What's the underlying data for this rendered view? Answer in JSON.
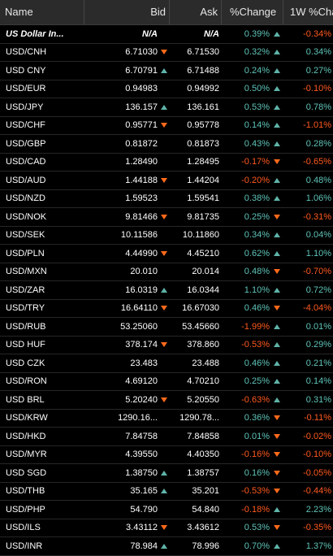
{
  "header": {
    "name": "Name",
    "bid": "Bid",
    "ask": "Ask",
    "change": "%Change",
    "week_change": "1W %Cha..."
  },
  "colors": {
    "positive": "#5fc4b8",
    "negative": "#ff5a1f",
    "up_arrow": "#5fb3a8",
    "down_arrow": "#ff6a1a"
  },
  "rows": [
    {
      "name": "US Dollar In...",
      "bid": "N/A",
      "bid_dir": "",
      "ask": "N/A",
      "chg": "0.39%",
      "chg_dir": "up",
      "wk": "-0.34%",
      "style": "na"
    },
    {
      "name": "USD/CNH",
      "bid": "6.71030",
      "bid_dir": "down",
      "ask": "6.71530",
      "chg": "0.32%",
      "chg_dir": "up",
      "wk": "0.34%",
      "style": ""
    },
    {
      "name": "USD CNY",
      "bid": "6.70791",
      "bid_dir": "up",
      "ask": "6.71488",
      "chg": "0.24%",
      "chg_dir": "up",
      "wk": "0.27%",
      "style": ""
    },
    {
      "name": "USD/EUR",
      "bid": "0.94983",
      "bid_dir": "",
      "ask": "0.94992",
      "chg": "0.50%",
      "chg_dir": "up",
      "wk": "-0.10%",
      "style": ""
    },
    {
      "name": "USD/JPY",
      "bid": "136.157",
      "bid_dir": "up",
      "ask": "136.161",
      "chg": "0.53%",
      "chg_dir": "up",
      "wk": "0.78%",
      "style": ""
    },
    {
      "name": "USD/CHF",
      "bid": "0.95771",
      "bid_dir": "down",
      "ask": "0.95778",
      "chg": "0.14%",
      "chg_dir": "up",
      "wk": "-1.01%",
      "style": ""
    },
    {
      "name": "USD/GBP",
      "bid": "0.81872",
      "bid_dir": "",
      "ask": "0.81873",
      "chg": "0.43%",
      "chg_dir": "up",
      "wk": "0.28%",
      "style": ""
    },
    {
      "name": "USD/CAD",
      "bid": "1.28490",
      "bid_dir": "",
      "ask": "1.28495",
      "chg": "-0.17%",
      "chg_dir": "down",
      "wk": "-0.65%",
      "style": ""
    },
    {
      "name": "USD/AUD",
      "bid": "1.44188",
      "bid_dir": "down",
      "ask": "1.44204",
      "chg": "-0.20%",
      "chg_dir": "up",
      "wk": "0.48%",
      "style": ""
    },
    {
      "name": "USD/NZD",
      "bid": "1.59523",
      "bid_dir": "",
      "ask": "1.59541",
      "chg": "0.38%",
      "chg_dir": "up",
      "wk": "1.06%",
      "style": ""
    },
    {
      "name": "USD/NOK",
      "bid": "9.81466",
      "bid_dir": "down",
      "ask": "9.81735",
      "chg": "0.25%",
      "chg_dir": "down",
      "wk": "-0.31%",
      "style": ""
    },
    {
      "name": "USD/SEK",
      "bid": "10.11586",
      "bid_dir": "",
      "ask": "10.11860",
      "chg": "0.34%",
      "chg_dir": "up",
      "wk": "0.04%",
      "style": ""
    },
    {
      "name": "USD/PLN",
      "bid": "4.44990",
      "bid_dir": "down",
      "ask": "4.45210",
      "chg": "0.62%",
      "chg_dir": "up",
      "wk": "1.10%",
      "style": ""
    },
    {
      "name": "USD/MXN",
      "bid": "20.010",
      "bid_dir": "",
      "ask": "20.014",
      "chg": "0.48%",
      "chg_dir": "down",
      "wk": "-0.70%",
      "style": ""
    },
    {
      "name": "USD/ZAR",
      "bid": "16.0319",
      "bid_dir": "up",
      "ask": "16.0344",
      "chg": "1.10%",
      "chg_dir": "up",
      "wk": "0.72%",
      "style": ""
    },
    {
      "name": "USD/TRY",
      "bid": "16.64110",
      "bid_dir": "down",
      "ask": "16.67030",
      "chg": "0.46%",
      "chg_dir": "down",
      "wk": "-4.04%",
      "style": ""
    },
    {
      "name": "USD/RUB",
      "bid": "53.25060",
      "bid_dir": "",
      "ask": "53.45660",
      "chg": "-1.99%",
      "chg_dir": "up",
      "wk": "0.01%",
      "style": ""
    },
    {
      "name": "USD HUF",
      "bid": "378.174",
      "bid_dir": "down",
      "ask": "378.860",
      "chg": "-0.53%",
      "chg_dir": "up",
      "wk": "0.29%",
      "style": ""
    },
    {
      "name": "USD CZK",
      "bid": "23.483",
      "bid_dir": "",
      "ask": "23.488",
      "chg": "0.46%",
      "chg_dir": "up",
      "wk": "0.21%",
      "style": ""
    },
    {
      "name": "USD/RON",
      "bid": "4.69120",
      "bid_dir": "",
      "ask": "4.70210",
      "chg": "0.25%",
      "chg_dir": "up",
      "wk": "0.14%",
      "style": ""
    },
    {
      "name": "USD BRL",
      "bid": "5.20240",
      "bid_dir": "down",
      "ask": "5.20550",
      "chg": "-0.63%",
      "chg_dir": "up",
      "wk": "0.31%",
      "style": ""
    },
    {
      "name": "USD/KRW",
      "bid": "1290.16...",
      "bid_dir": "",
      "ask": "1290.78...",
      "chg": "0.36%",
      "chg_dir": "down",
      "wk": "-0.11%",
      "style": ""
    },
    {
      "name": "USD/HKD",
      "bid": "7.84758",
      "bid_dir": "",
      "ask": "7.84858",
      "chg": "0.01%",
      "chg_dir": "down",
      "wk": "-0.02%",
      "style": ""
    },
    {
      "name": "USD/MYR",
      "bid": "4.39550",
      "bid_dir": "",
      "ask": "4.40350",
      "chg": "-0.16%",
      "chg_dir": "down",
      "wk": "-0.10%",
      "style": ""
    },
    {
      "name": "USD SGD",
      "bid": "1.38750",
      "bid_dir": "up",
      "ask": "1.38757",
      "chg": "0.16%",
      "chg_dir": "down",
      "wk": "-0.05%",
      "style": ""
    },
    {
      "name": "USD/THB",
      "bid": "35.165",
      "bid_dir": "up",
      "ask": "35.201",
      "chg": "-0.53%",
      "chg_dir": "down",
      "wk": "-0.44%",
      "style": ""
    },
    {
      "name": "USD/PHP",
      "bid": "54.790",
      "bid_dir": "",
      "ask": "54.840",
      "chg": "-0.18%",
      "chg_dir": "up",
      "wk": "2.23%",
      "style": ""
    },
    {
      "name": "USD/ILS",
      "bid": "3.43112",
      "bid_dir": "down",
      "ask": "3.43612",
      "chg": "0.53%",
      "chg_dir": "down",
      "wk": "-0.35%",
      "style": ""
    },
    {
      "name": "USD/INR",
      "bid": "78.984",
      "bid_dir": "up",
      "ask": "78.996",
      "chg": "0.70%",
      "chg_dir": "up",
      "wk": "1.37%",
      "style": ""
    }
  ]
}
